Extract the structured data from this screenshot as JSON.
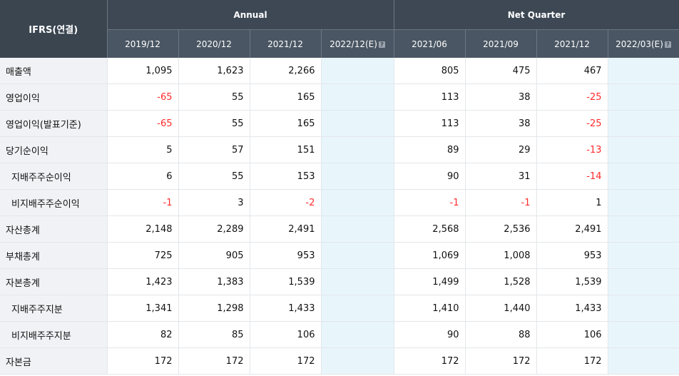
{
  "header": {
    "corner": "IFRS(연결)",
    "annual_label": "Annual",
    "quarter_label": "Net Quarter",
    "annual_cols": [
      "2019/12",
      "2020/12",
      "2021/12",
      "2022/12(E)"
    ],
    "quarter_cols": [
      "2021/06",
      "2021/09",
      "2021/12",
      "2022/03(E)"
    ],
    "help_icon": "question-icon",
    "help_glyph": "?"
  },
  "colors": {
    "header_bg": "#3a4550",
    "negative": "#ff2b2b",
    "estimate_bg": "#e8f6fc",
    "label_bg": "#f0f2f5"
  },
  "rows": [
    {
      "label": "매출액",
      "sub": false,
      "annual": [
        "1,095",
        "1,623",
        "2,266",
        ""
      ],
      "quarter": [
        "805",
        "475",
        "467",
        ""
      ]
    },
    {
      "label": "영업이익",
      "sub": false,
      "annual": [
        "-65",
        "55",
        "165",
        ""
      ],
      "quarter": [
        "113",
        "38",
        "-25",
        ""
      ]
    },
    {
      "label": "영업이익(발표기준)",
      "sub": false,
      "annual": [
        "-65",
        "55",
        "165",
        ""
      ],
      "quarter": [
        "113",
        "38",
        "-25",
        ""
      ]
    },
    {
      "label": "당기순이익",
      "sub": false,
      "annual": [
        "5",
        "57",
        "151",
        ""
      ],
      "quarter": [
        "89",
        "29",
        "-13",
        ""
      ]
    },
    {
      "label": "지배주주순이익",
      "sub": true,
      "annual": [
        "6",
        "55",
        "153",
        ""
      ],
      "quarter": [
        "90",
        "31",
        "-14",
        ""
      ]
    },
    {
      "label": "비지배주주순이익",
      "sub": true,
      "annual": [
        "-1",
        "3",
        "-2",
        ""
      ],
      "quarter": [
        "-1",
        "-1",
        "1",
        ""
      ]
    },
    {
      "label": "자산총계",
      "sub": false,
      "annual": [
        "2,148",
        "2,289",
        "2,491",
        ""
      ],
      "quarter": [
        "2,568",
        "2,536",
        "2,491",
        ""
      ]
    },
    {
      "label": "부채총계",
      "sub": false,
      "annual": [
        "725",
        "905",
        "953",
        ""
      ],
      "quarter": [
        "1,069",
        "1,008",
        "953",
        ""
      ]
    },
    {
      "label": "자본총계",
      "sub": false,
      "annual": [
        "1,423",
        "1,383",
        "1,539",
        ""
      ],
      "quarter": [
        "1,499",
        "1,528",
        "1,539",
        ""
      ]
    },
    {
      "label": "지배주주지분",
      "sub": true,
      "annual": [
        "1,341",
        "1,298",
        "1,433",
        ""
      ],
      "quarter": [
        "1,410",
        "1,440",
        "1,433",
        ""
      ]
    },
    {
      "label": "비지배주주지분",
      "sub": true,
      "annual": [
        "82",
        "85",
        "106",
        ""
      ],
      "quarter": [
        "90",
        "88",
        "106",
        ""
      ]
    },
    {
      "label": "자본금",
      "sub": false,
      "annual": [
        "172",
        "172",
        "172",
        ""
      ],
      "quarter": [
        "172",
        "172",
        "172",
        ""
      ]
    }
  ]
}
